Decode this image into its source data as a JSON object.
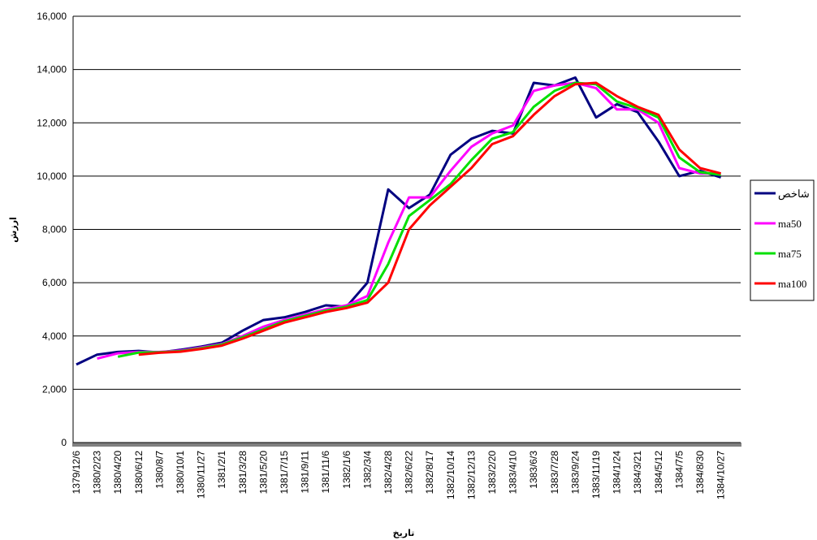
{
  "chart_data": {
    "type": "line",
    "xlabel": "تاریخ",
    "ylabel": "ارزش",
    "ylim": [
      0,
      16000
    ],
    "y_ticks": [
      "0",
      "2,000",
      "4,000",
      "6,000",
      "8,000",
      "10,000",
      "12,000",
      "14,000",
      "16,000"
    ],
    "grid": "horizontal",
    "legend_position": "right",
    "x_ticks": [
      "1379/12/6",
      "1380/2/23",
      "1380/4/20",
      "1380/6/12",
      "1380/8/7",
      "1380/10/1",
      "1380/11/27",
      "1381/2/1",
      "1381/3/28",
      "1381/5/20",
      "1381/7/15",
      "1381/9/11",
      "1381/11/6",
      "1382/1/6",
      "1382/3/4",
      "1382/4/28",
      "1382/6/22",
      "1382/8/17",
      "1382/10/14",
      "1382/12/13",
      "1383/2/20",
      "1383/4/10",
      "1383/6/3",
      "1383/7/28",
      "1383/9/24",
      "1383/11/19",
      "1384/1/24",
      "1384/3/21",
      "1384/5/12",
      "1384/7/5",
      "1384/8/30",
      "1384/10/27"
    ],
    "series": [
      {
        "name": "شاخص",
        "color": "#000080",
        "values": [
          2930,
          3300,
          3400,
          3440,
          3380,
          3480,
          3600,
          3750,
          4200,
          4600,
          4700,
          4900,
          5150,
          5100,
          6000,
          9500,
          8800,
          9300,
          10800,
          11400,
          11700,
          11600,
          13500,
          13400,
          13700,
          12200,
          12700,
          12400,
          11300,
          10000,
          10200,
          9950
        ]
      },
      {
        "name": "ma50",
        "color": "#ff00ff",
        "values": [
          null,
          3150,
          3350,
          3400,
          3400,
          3450,
          3570,
          3700,
          4000,
          4350,
          4600,
          4800,
          5000,
          5150,
          5500,
          7500,
          9200,
          9200,
          10200,
          11100,
          11600,
          11900,
          13200,
          13400,
          13500,
          13300,
          12500,
          12500,
          12000,
          10300,
          10100,
          10100
        ]
      },
      {
        "name": "ma75",
        "color": "#00e000",
        "values": [
          null,
          null,
          3220,
          3380,
          3390,
          3430,
          3540,
          3680,
          3950,
          4250,
          4550,
          4750,
          4950,
          5100,
          5350,
          6700,
          8500,
          9100,
          9700,
          10600,
          11400,
          11650,
          12600,
          13200,
          13500,
          13450,
          12800,
          12550,
          12200,
          10700,
          10150,
          10050
        ]
      },
      {
        "name": "ma100",
        "color": "#ff0000",
        "values": [
          null,
          null,
          null,
          3300,
          3370,
          3410,
          3510,
          3640,
          3900,
          4200,
          4500,
          4700,
          4900,
          5050,
          5250,
          6000,
          8000,
          8900,
          9600,
          10300,
          11200,
          11500,
          12300,
          13000,
          13450,
          13500,
          13000,
          12600,
          12300,
          11000,
          10300,
          10100
        ]
      }
    ]
  }
}
